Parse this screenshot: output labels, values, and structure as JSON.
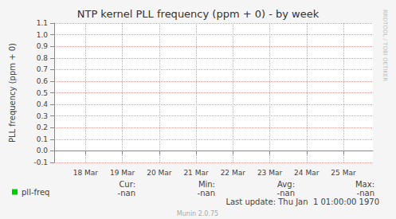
{
  "chart_data": {
    "type": "line",
    "title": "NTP kernel PLL frequency (ppm + 0) - by week",
    "y_label": "PLL frequency (ppm + 0)",
    "x": [],
    "xlim": [
      17.15,
      25.8
    ],
    "xticks": [
      {
        "value": 18,
        "label": "18 Mar"
      },
      {
        "value": 19,
        "label": "19 Mar"
      },
      {
        "value": 20,
        "label": "20 Mar"
      },
      {
        "value": 21,
        "label": "21 Mar"
      },
      {
        "value": 22,
        "label": "22 Mar"
      },
      {
        "value": 23,
        "label": "23 Mar"
      },
      {
        "value": 24,
        "label": "24 Mar"
      },
      {
        "value": 25,
        "label": "25 Mar"
      }
    ],
    "ylim": [
      -0.1,
      1.1
    ],
    "yticks": [
      -0.1,
      {
        "value": 0,
        "label": "0.0"
      },
      0.1,
      0.2,
      0.3,
      0.4,
      0.5,
      0.6,
      0.7,
      0.8,
      0.9,
      {
        "value": 1,
        "label": "1.0"
      },
      1.1
    ],
    "grid": true,
    "series": [
      {
        "name": "pll-freq",
        "color": "#00cc00",
        "values": []
      }
    ],
    "legend_stats": {
      "columns": [
        "Cur:",
        "Min:",
        "Avg:",
        "Max:"
      ],
      "values": [
        "-nan",
        "-nan",
        "-nan",
        "-nan"
      ]
    },
    "footer": "Last update: Thu Jan  1 01:00:00 1970",
    "credit": "Munin 2.0.75",
    "watermark": "RRDTOOL / TOBI OETIKER"
  }
}
